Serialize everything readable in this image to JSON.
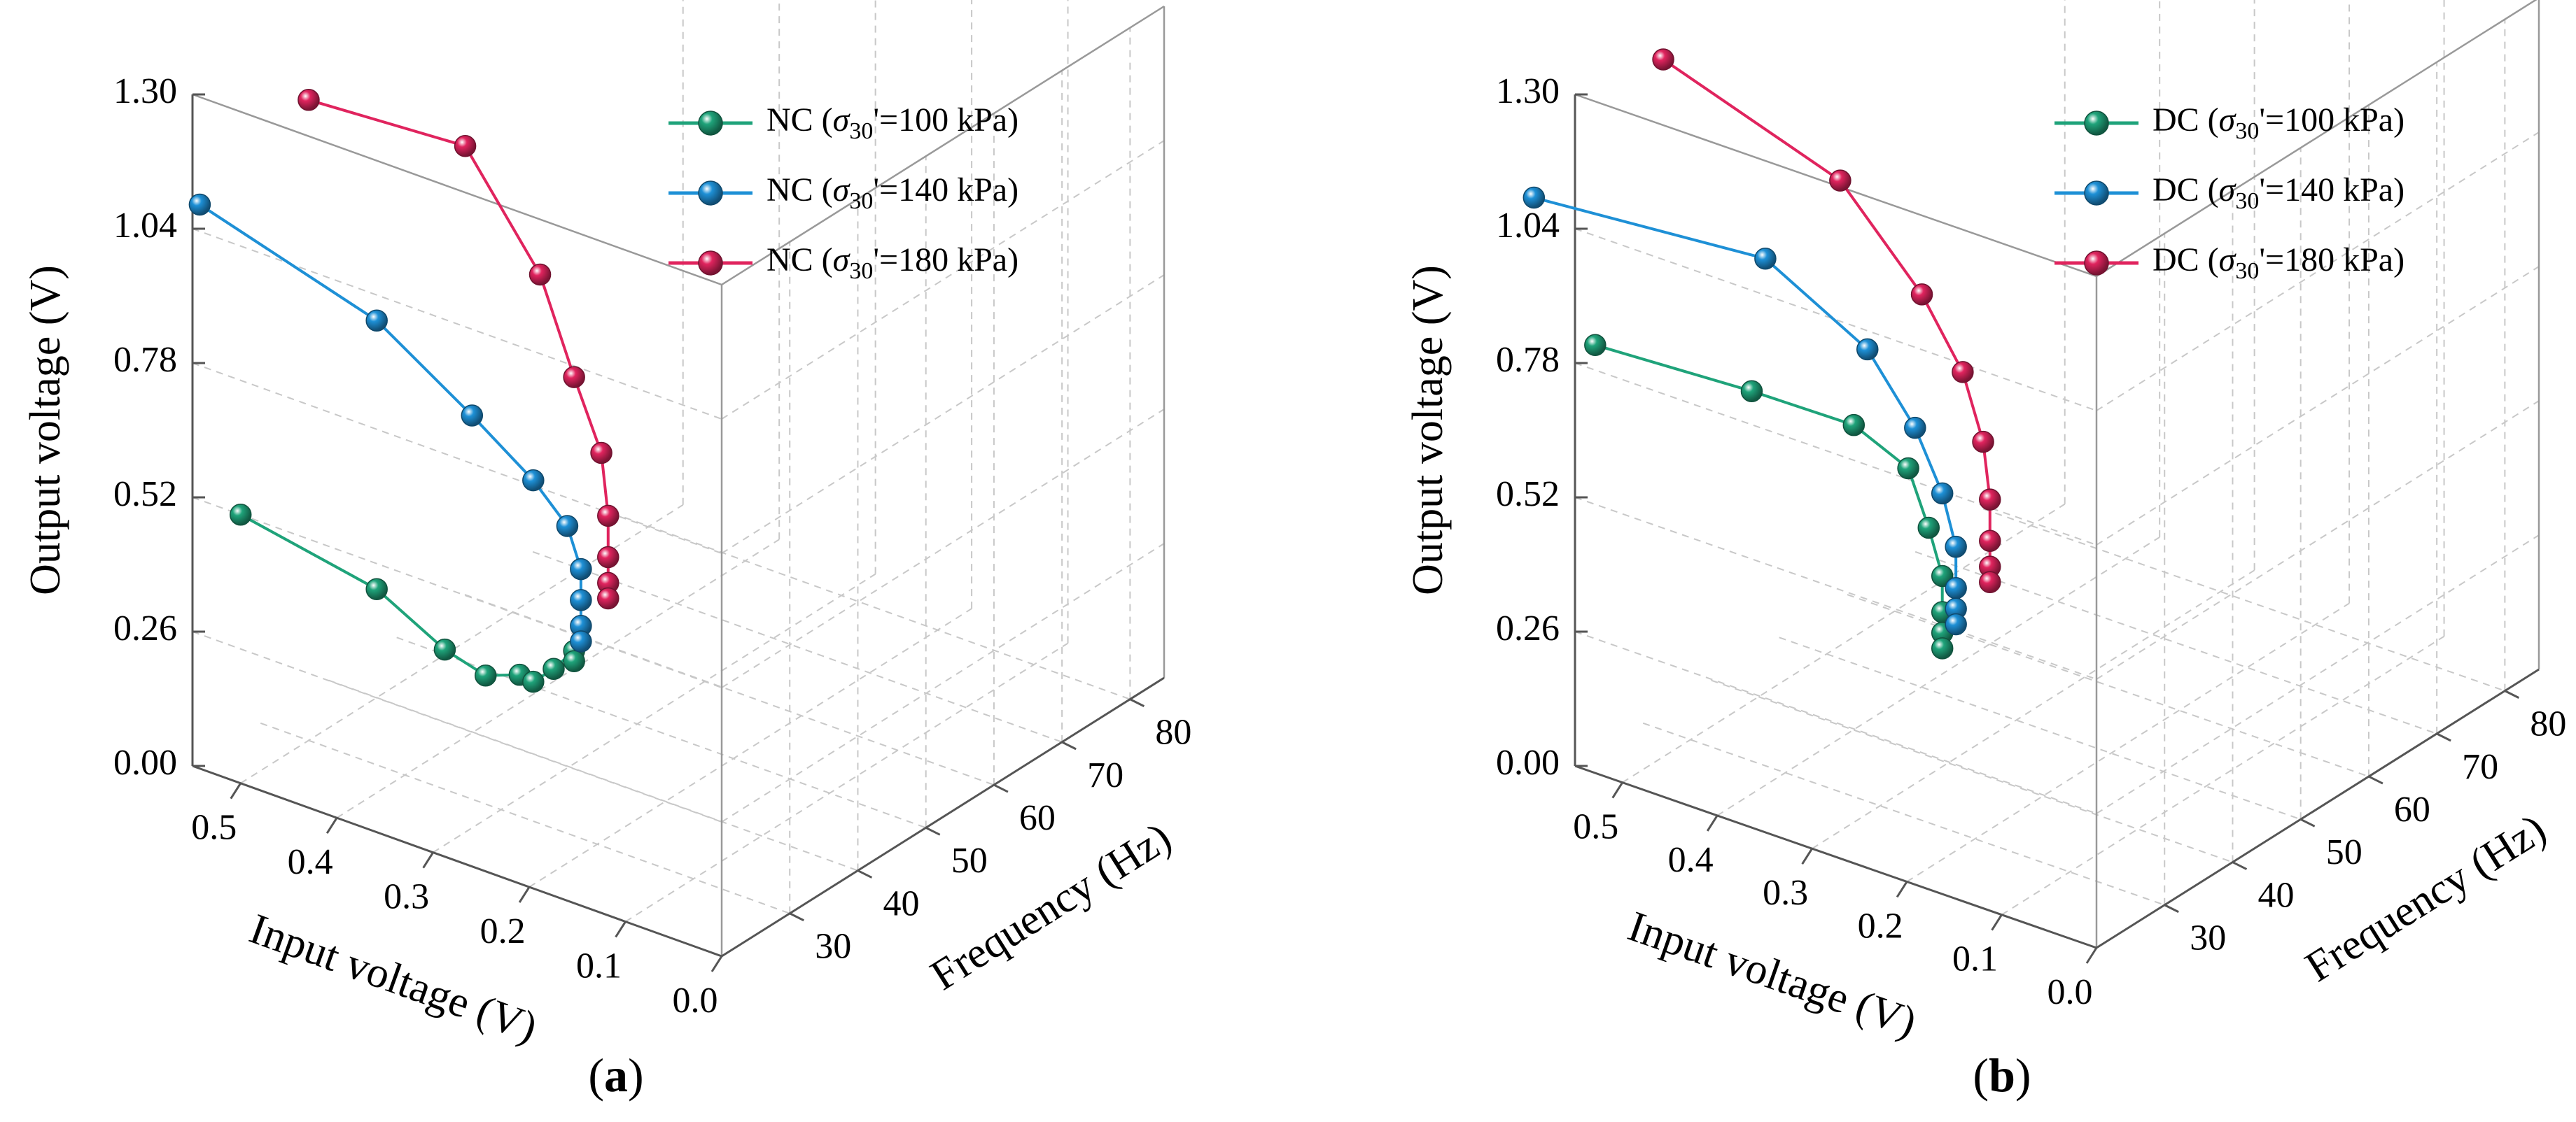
{
  "chart_data": [
    {
      "type": "line3d",
      "panel_label": "a",
      "zlabel": "Output voltage (V)",
      "xlabel": "Input voltage (V)",
      "ylabel": "Frequency (Hz)",
      "x_ticks": [
        "0.5",
        "0.4",
        "0.3",
        "0.2",
        "0.1",
        "0.0"
      ],
      "y_ticks": [
        "30",
        "40",
        "50",
        "60",
        "70",
        "80"
      ],
      "z_ticks": [
        "0.00",
        "0.26",
        "0.52",
        "0.78",
        "1.04",
        "1.30"
      ],
      "xlim": [
        0,
        0.55
      ],
      "ylim": [
        20,
        85
      ],
      "zlim": [
        0,
        1.3
      ],
      "grid": true,
      "legend_position": "top-right",
      "series": [
        {
          "name_prefix": "NC (",
          "name_sigma": "σ",
          "name_sub": "30",
          "name_suffix": "'=100 kPa)",
          "color": "#1fa37a",
          "points": [
            [
              0.5,
              20,
              0.52
            ],
            [
              0.5,
              40,
              0.21
            ],
            [
              0.5,
              50,
              0.01
            ],
            [
              0.5,
              56,
              -0.09
            ],
            [
              0.5,
              61,
              -0.13
            ],
            [
              0.5,
              63,
              -0.16
            ],
            [
              0.5,
              66,
              -0.16
            ],
            [
              0.5,
              69,
              -0.15
            ],
            [
              0.5,
              69,
              -0.17
            ]
          ]
        },
        {
          "name_prefix": "NC (",
          "name_sigma": "σ",
          "name_sub": "30",
          "name_suffix": "'=140 kPa)",
          "color": "#1e90d6",
          "points": [
            [
              0.5,
              14,
              1.17
            ],
            [
              0.5,
              40,
              0.73
            ],
            [
              0.5,
              54,
              0.43
            ],
            [
              0.5,
              63,
              0.23
            ],
            [
              0.5,
              68,
              0.1
            ],
            [
              0.5,
              70,
              0.0
            ],
            [
              0.5,
              70,
              -0.06
            ],
            [
              0.5,
              70,
              -0.11
            ],
            [
              0.5,
              70,
              -0.14
            ]
          ]
        },
        {
          "name_prefix": "NC (",
          "name_sigma": "σ",
          "name_sub": "30",
          "name_suffix": "'=180 kPa)",
          "color": "#e0245e",
          "points": [
            [
              0.5,
              30,
              1.24
            ],
            [
              0.5,
              53,
              0.96
            ],
            [
              0.5,
              64,
              0.62
            ],
            [
              0.5,
              69,
              0.38
            ],
            [
              0.5,
              73,
              0.2
            ],
            [
              0.5,
              74,
              0.07
            ],
            [
              0.5,
              74,
              -0.01
            ],
            [
              0.5,
              74,
              -0.06
            ],
            [
              0.5,
              74,
              -0.09
            ]
          ]
        }
      ]
    },
    {
      "type": "line3d",
      "panel_label": "b",
      "zlabel": "Output voltage (V)",
      "xlabel": "Input voltage (V)",
      "ylabel": "Frequency (Hz)",
      "x_ticks": [
        "0.5",
        "0.4",
        "0.3",
        "0.2",
        "0.1",
        "0.0"
      ],
      "y_ticks": [
        "30",
        "40",
        "50",
        "60",
        "70",
        "80"
      ],
      "z_ticks": [
        "0.00",
        "0.26",
        "0.52",
        "0.78",
        "1.04",
        "1.30"
      ],
      "xlim": [
        0,
        0.55
      ],
      "ylim": [
        20,
        85
      ],
      "zlim": [
        0,
        1.3
      ],
      "grid": true,
      "legend_position": "top-right",
      "series": [
        {
          "name_prefix": "DC (",
          "name_sigma": "σ",
          "name_sub": "30",
          "name_suffix": "'=100 kPa)",
          "color": "#1fa37a",
          "points": [
            [
              0.5,
              16,
              0.88
            ],
            [
              0.5,
              39,
              0.6
            ],
            [
              0.5,
              54,
              0.41
            ],
            [
              0.5,
              62,
              0.26
            ],
            [
              0.5,
              65,
              0.12
            ],
            [
              0.5,
              67,
              0.01
            ],
            [
              0.5,
              67,
              -0.06
            ],
            [
              0.5,
              67,
              -0.1
            ],
            [
              0.5,
              67,
              -0.13
            ]
          ]
        },
        {
          "name_prefix": "DC (",
          "name_sigma": "σ",
          "name_sub": "30",
          "name_suffix": "'=140 kPa)",
          "color": "#1e90d6",
          "points": [
            [
              0.5,
              7,
              1.24
            ],
            [
              0.5,
              41,
              0.84
            ],
            [
              0.5,
              56,
              0.54
            ],
            [
              0.5,
              63,
              0.33
            ],
            [
              0.5,
              67,
              0.17
            ],
            [
              0.5,
              69,
              0.05
            ],
            [
              0.5,
              69,
              -0.03
            ],
            [
              0.5,
              69,
              -0.07
            ],
            [
              0.5,
              69,
              -0.1
            ]
          ]
        },
        {
          "name_prefix": "DC (",
          "name_sigma": "σ",
          "name_sub": "30",
          "name_suffix": "'=180 kPa)",
          "color": "#e0245e",
          "points": [
            [
              0.5,
              26,
              1.35
            ],
            [
              0.5,
              52,
              0.9
            ],
            [
              0.5,
              64,
              0.58
            ],
            [
              0.5,
              70,
              0.38
            ],
            [
              0.5,
              73,
              0.22
            ],
            [
              0.5,
              74,
              0.1
            ],
            [
              0.5,
              74,
              0.02
            ],
            [
              0.5,
              74,
              -0.03
            ],
            [
              0.5,
              74,
              -0.06
            ]
          ]
        }
      ]
    }
  ]
}
